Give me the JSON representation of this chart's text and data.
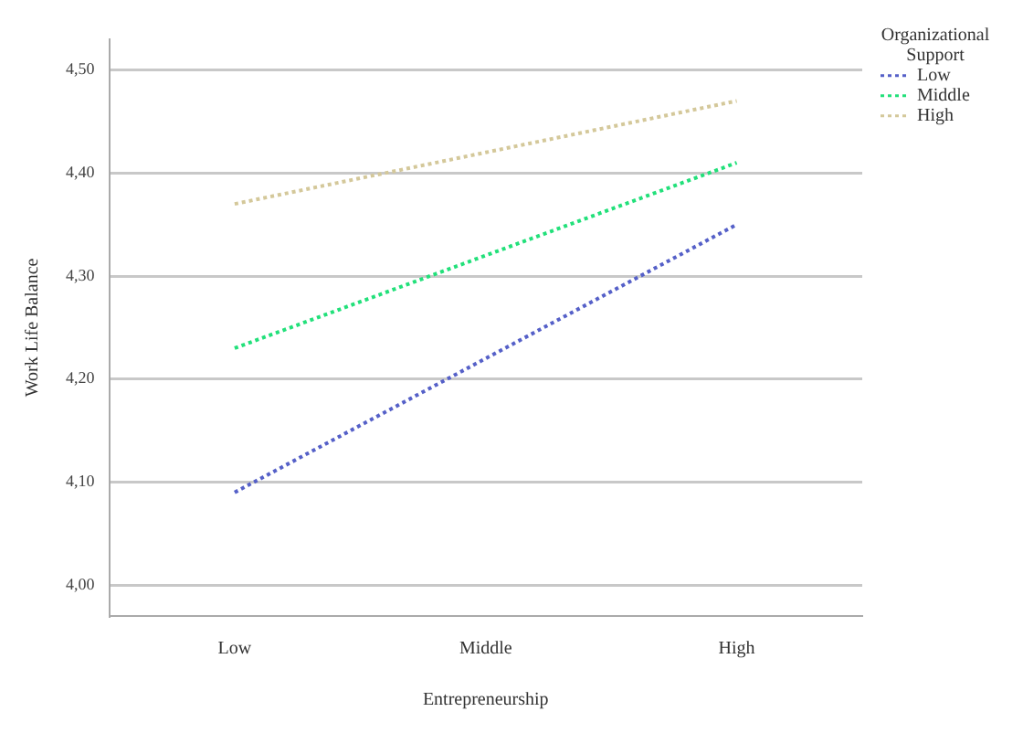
{
  "chart_data": {
    "type": "line",
    "xlabel": "Entrepreneurship",
    "ylabel": "Work Life Balance",
    "legend_title": "Organizational Support",
    "categories": [
      "Low",
      "Middle",
      "High"
    ],
    "series": [
      {
        "name": "Low",
        "color": "#5560c8",
        "values": [
          4.09,
          4.22,
          4.35
        ]
      },
      {
        "name": "Middle",
        "color": "#22e07a",
        "values": [
          4.23,
          4.32,
          4.41
        ]
      },
      {
        "name": "High",
        "color": "#d4c89a",
        "values": [
          4.37,
          4.42,
          4.47
        ]
      }
    ],
    "ylim": [
      3.97,
      4.53
    ],
    "yticks": [
      {
        "value": 4.0,
        "label": "4,00"
      },
      {
        "value": 4.1,
        "label": "4,10"
      },
      {
        "value": 4.2,
        "label": "4,20"
      },
      {
        "value": 4.3,
        "label": "4,30"
      },
      {
        "value": 4.4,
        "label": "4,40"
      },
      {
        "value": 4.5,
        "label": "4,50"
      }
    ],
    "grid": "y",
    "legend": "top right",
    "marker": "none",
    "line_style": "dotted"
  }
}
